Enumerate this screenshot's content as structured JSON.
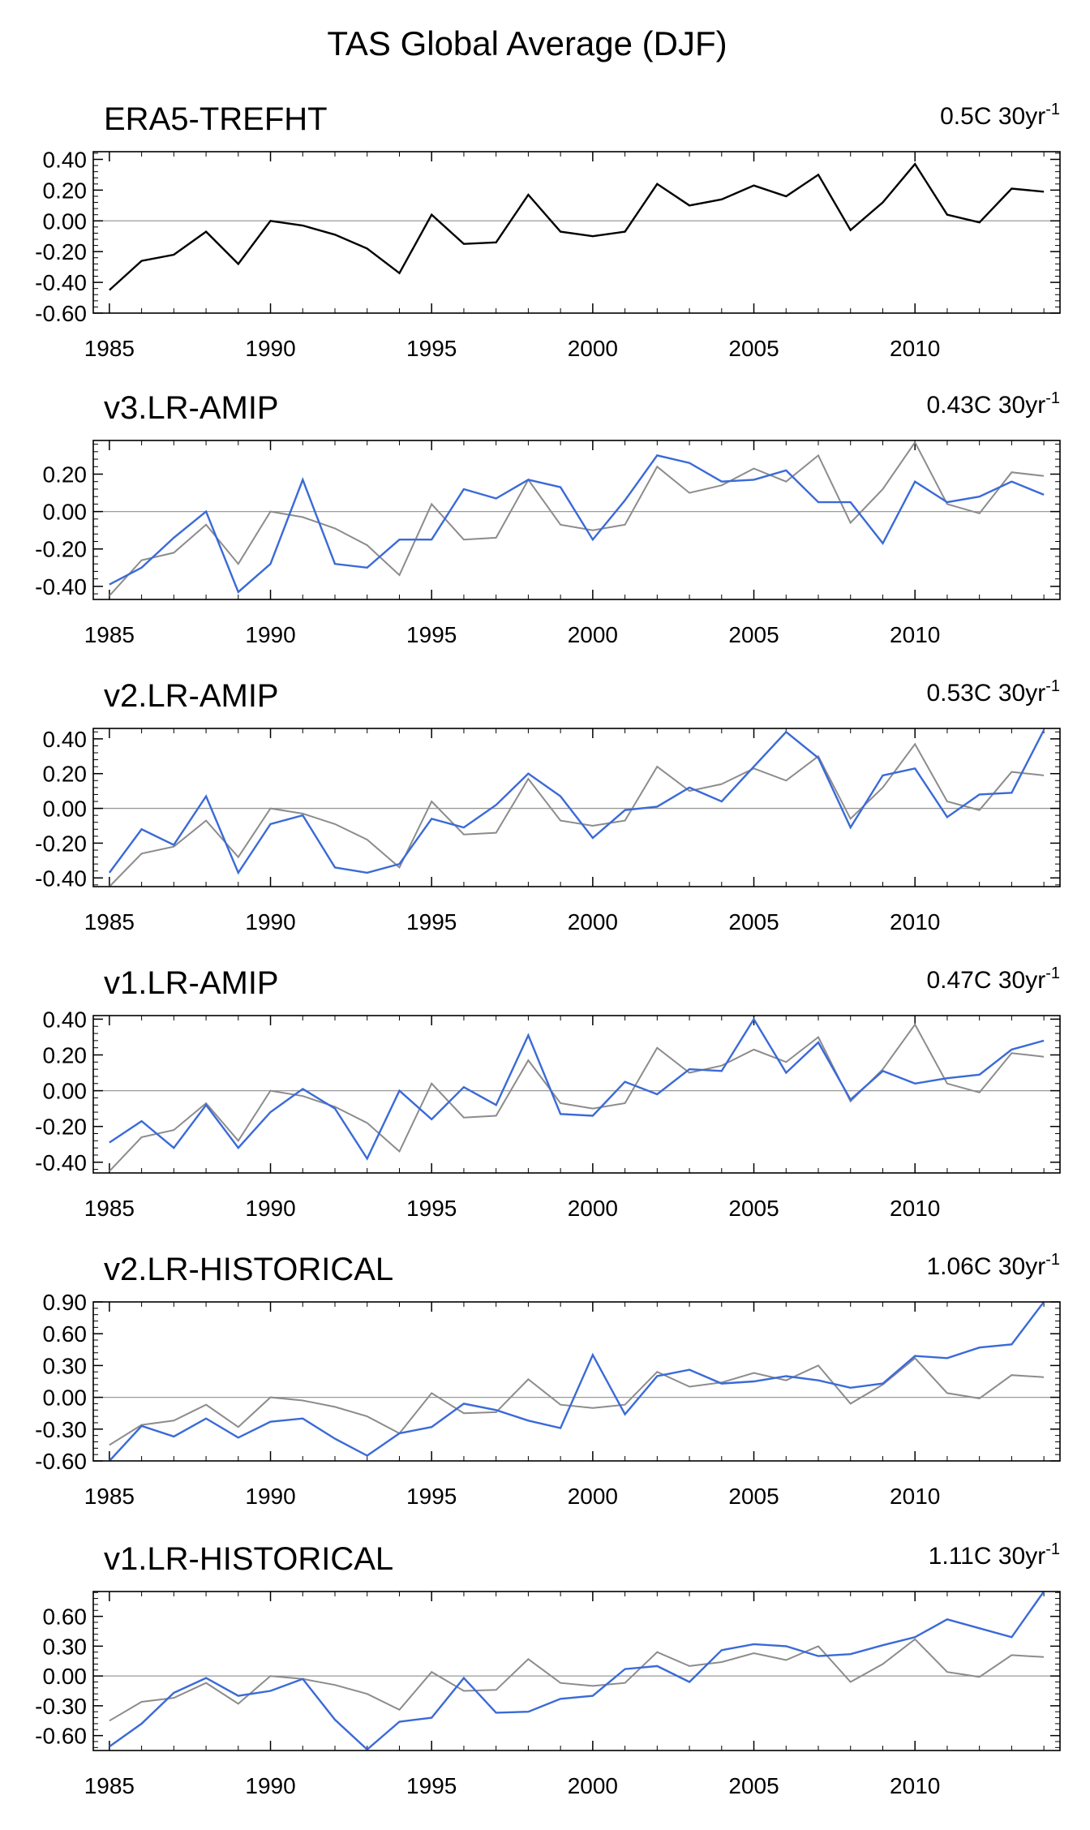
{
  "chart_data": {
    "type": "line",
    "title": "TAS Global Average (DJF)",
    "x": [
      1985,
      1986,
      1987,
      1988,
      1989,
      1990,
      1991,
      1992,
      1993,
      1994,
      1995,
      1996,
      1997,
      1998,
      1999,
      2000,
      2001,
      2002,
      2003,
      2004,
      2005,
      2006,
      2007,
      2008,
      2009,
      2010,
      2011,
      2012,
      2013,
      2014
    ],
    "xlim": [
      1984.5,
      2014.5
    ],
    "xticks": [
      "1985",
      "1990",
      "1995",
      "2000",
      "2005",
      "2010"
    ],
    "reference": {
      "name": "ERA5-TREFHT",
      "color": "#000000",
      "values": [
        -0.45,
        -0.26,
        -0.22,
        -0.07,
        -0.28,
        0.0,
        -0.03,
        -0.09,
        -0.18,
        -0.34,
        0.04,
        -0.15,
        -0.14,
        0.17,
        -0.07,
        -0.1,
        -0.07,
        0.24,
        0.1,
        0.14,
        0.23,
        0.16,
        0.3,
        -0.06,
        0.12,
        0.37,
        0.04,
        -0.01,
        0.21,
        0.19
      ]
    },
    "panels": [
      {
        "name": "ERA5-TREFHT",
        "trend": "0.5C 30yr",
        "trend_exp": "-1",
        "ylim": [
          -0.6,
          0.45
        ],
        "yticks": [
          "0.40",
          "0.20",
          "0.00",
          "-0.20",
          "-0.40",
          "-0.60"
        ],
        "show_reference": false,
        "series_color": "#000000",
        "values": [
          -0.45,
          -0.26,
          -0.22,
          -0.07,
          -0.28,
          0.0,
          -0.03,
          -0.09,
          -0.18,
          -0.34,
          0.04,
          -0.15,
          -0.14,
          0.17,
          -0.07,
          -0.1,
          -0.07,
          0.24,
          0.1,
          0.14,
          0.23,
          0.16,
          0.3,
          -0.06,
          0.12,
          0.37,
          0.04,
          -0.01,
          0.21,
          0.19
        ]
      },
      {
        "name": "v3.LR-AMIP",
        "trend": "0.43C 30yr",
        "trend_exp": "-1",
        "ylim": [
          -0.47,
          0.38
        ],
        "yticks": [
          "0.20",
          "0.00",
          "-0.20",
          "-0.40"
        ],
        "show_reference": true,
        "series_color": "#3a6ad8",
        "values": [
          -0.39,
          -0.3,
          -0.14,
          0.0,
          -0.43,
          -0.28,
          0.17,
          -0.28,
          -0.3,
          -0.15,
          -0.15,
          0.12,
          0.07,
          0.17,
          0.13,
          -0.15,
          0.06,
          0.3,
          0.26,
          0.16,
          0.17,
          0.22,
          0.05,
          0.05,
          -0.17,
          0.16,
          0.05,
          0.08,
          0.16,
          0.09
        ]
      },
      {
        "name": "v2.LR-AMIP",
        "trend": "0.53C 30yr",
        "trend_exp": "-1",
        "ylim": [
          -0.45,
          0.46
        ],
        "yticks": [
          "0.40",
          "0.20",
          "0.00",
          "-0.20",
          "-0.40"
        ],
        "show_reference": true,
        "series_color": "#3a6ad8",
        "values": [
          -0.37,
          -0.12,
          -0.21,
          0.07,
          -0.37,
          -0.09,
          -0.04,
          -0.34,
          -0.37,
          -0.32,
          -0.06,
          -0.11,
          0.02,
          0.2,
          0.07,
          -0.17,
          -0.01,
          0.01,
          0.12,
          0.04,
          0.24,
          0.44,
          0.29,
          -0.11,
          0.19,
          0.23,
          -0.05,
          0.08,
          0.09,
          0.45
        ]
      },
      {
        "name": "v1.LR-AMIP",
        "trend": "0.47C 30yr",
        "trend_exp": "-1",
        "ylim": [
          -0.46,
          0.42
        ],
        "yticks": [
          "0.40",
          "0.20",
          "0.00",
          "-0.20",
          "-0.40"
        ],
        "show_reference": true,
        "series_color": "#3a6ad8",
        "values": [
          -0.29,
          -0.17,
          -0.32,
          -0.08,
          -0.32,
          -0.12,
          0.01,
          -0.1,
          -0.38,
          0.0,
          -0.16,
          0.02,
          -0.08,
          0.31,
          -0.13,
          -0.14,
          0.05,
          -0.02,
          0.12,
          0.11,
          0.4,
          0.1,
          0.27,
          -0.05,
          0.11,
          0.04,
          0.07,
          0.09,
          0.23,
          0.28
        ]
      },
      {
        "name": "v2.LR-HISTORICAL",
        "trend": "1.06C 30yr",
        "trend_exp": "-1",
        "ylim": [
          -0.6,
          0.9
        ],
        "yticks": [
          "0.90",
          "0.60",
          "0.30",
          "0.00",
          "-0.30",
          "-0.60"
        ],
        "show_reference": true,
        "series_color": "#3a6ad8",
        "values": [
          -0.6,
          -0.27,
          -0.37,
          -0.2,
          -0.38,
          -0.23,
          -0.2,
          -0.39,
          -0.55,
          -0.34,
          -0.28,
          -0.06,
          -0.12,
          -0.22,
          -0.29,
          0.4,
          -0.16,
          0.2,
          0.26,
          0.13,
          0.15,
          0.2,
          0.16,
          0.09,
          0.13,
          0.39,
          0.37,
          0.47,
          0.5,
          0.9
        ]
      },
      {
        "name": "v1.LR-HISTORICAL",
        "trend": "1.11C 30yr",
        "trend_exp": "-1",
        "ylim": [
          -0.75,
          0.85
        ],
        "yticks": [
          "0.60",
          "0.30",
          "0.00",
          "-0.30",
          "-0.60"
        ],
        "show_reference": true,
        "series_color": "#3a6ad8",
        "values": [
          -0.71,
          -0.48,
          -0.17,
          -0.02,
          -0.2,
          -0.15,
          -0.03,
          -0.44,
          -0.74,
          -0.46,
          -0.42,
          -0.02,
          -0.37,
          -0.36,
          -0.23,
          -0.2,
          0.07,
          0.1,
          -0.06,
          0.26,
          0.32,
          0.3,
          0.2,
          0.22,
          0.31,
          0.39,
          0.57,
          0.48,
          0.39,
          0.85
        ]
      }
    ]
  }
}
